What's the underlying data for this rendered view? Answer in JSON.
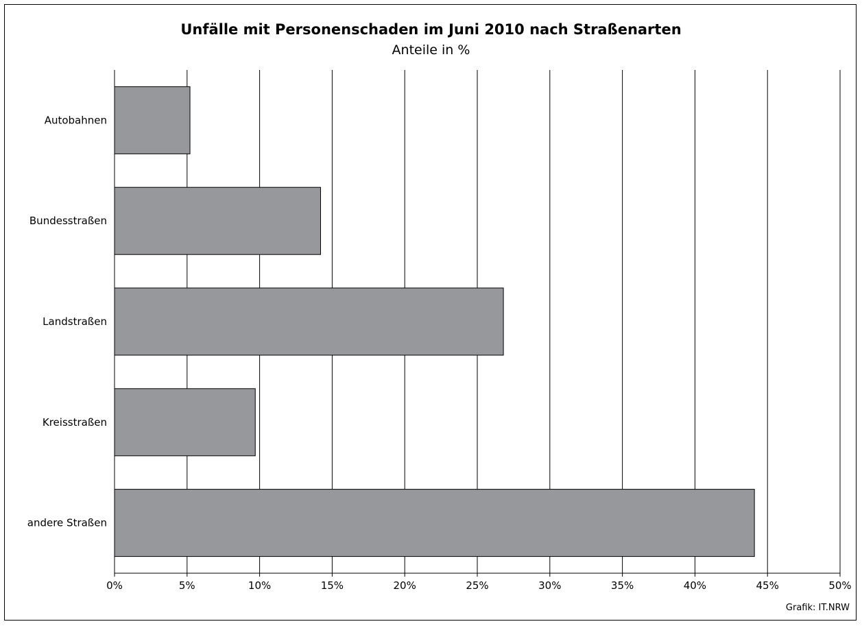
{
  "chart_data": {
    "type": "bar",
    "orientation": "horizontal",
    "title": "Unfälle mit Personenschaden im Juni 2010 nach Straßenarten",
    "subtitle": "Anteile in %",
    "categories": [
      "Autobahnen",
      "Bundesstraßen",
      "Landstraßen",
      "Kreisstraßen",
      "andere Straßen"
    ],
    "values": [
      5.2,
      14.2,
      26.8,
      9.7,
      44.1
    ],
    "xlim": [
      0,
      50
    ],
    "xticks": [
      0,
      5,
      10,
      15,
      20,
      25,
      30,
      35,
      40,
      45,
      50
    ],
    "tick_labels": [
      "0%",
      "5%",
      "10%",
      "15%",
      "20%",
      "25%",
      "30%",
      "35%",
      "40%",
      "45%",
      "50%"
    ],
    "xlabel": "",
    "ylabel": "",
    "grid": "vertical",
    "legend": "none",
    "bar_color": "#97989c",
    "source": "Grafik: IT.NRW"
  }
}
